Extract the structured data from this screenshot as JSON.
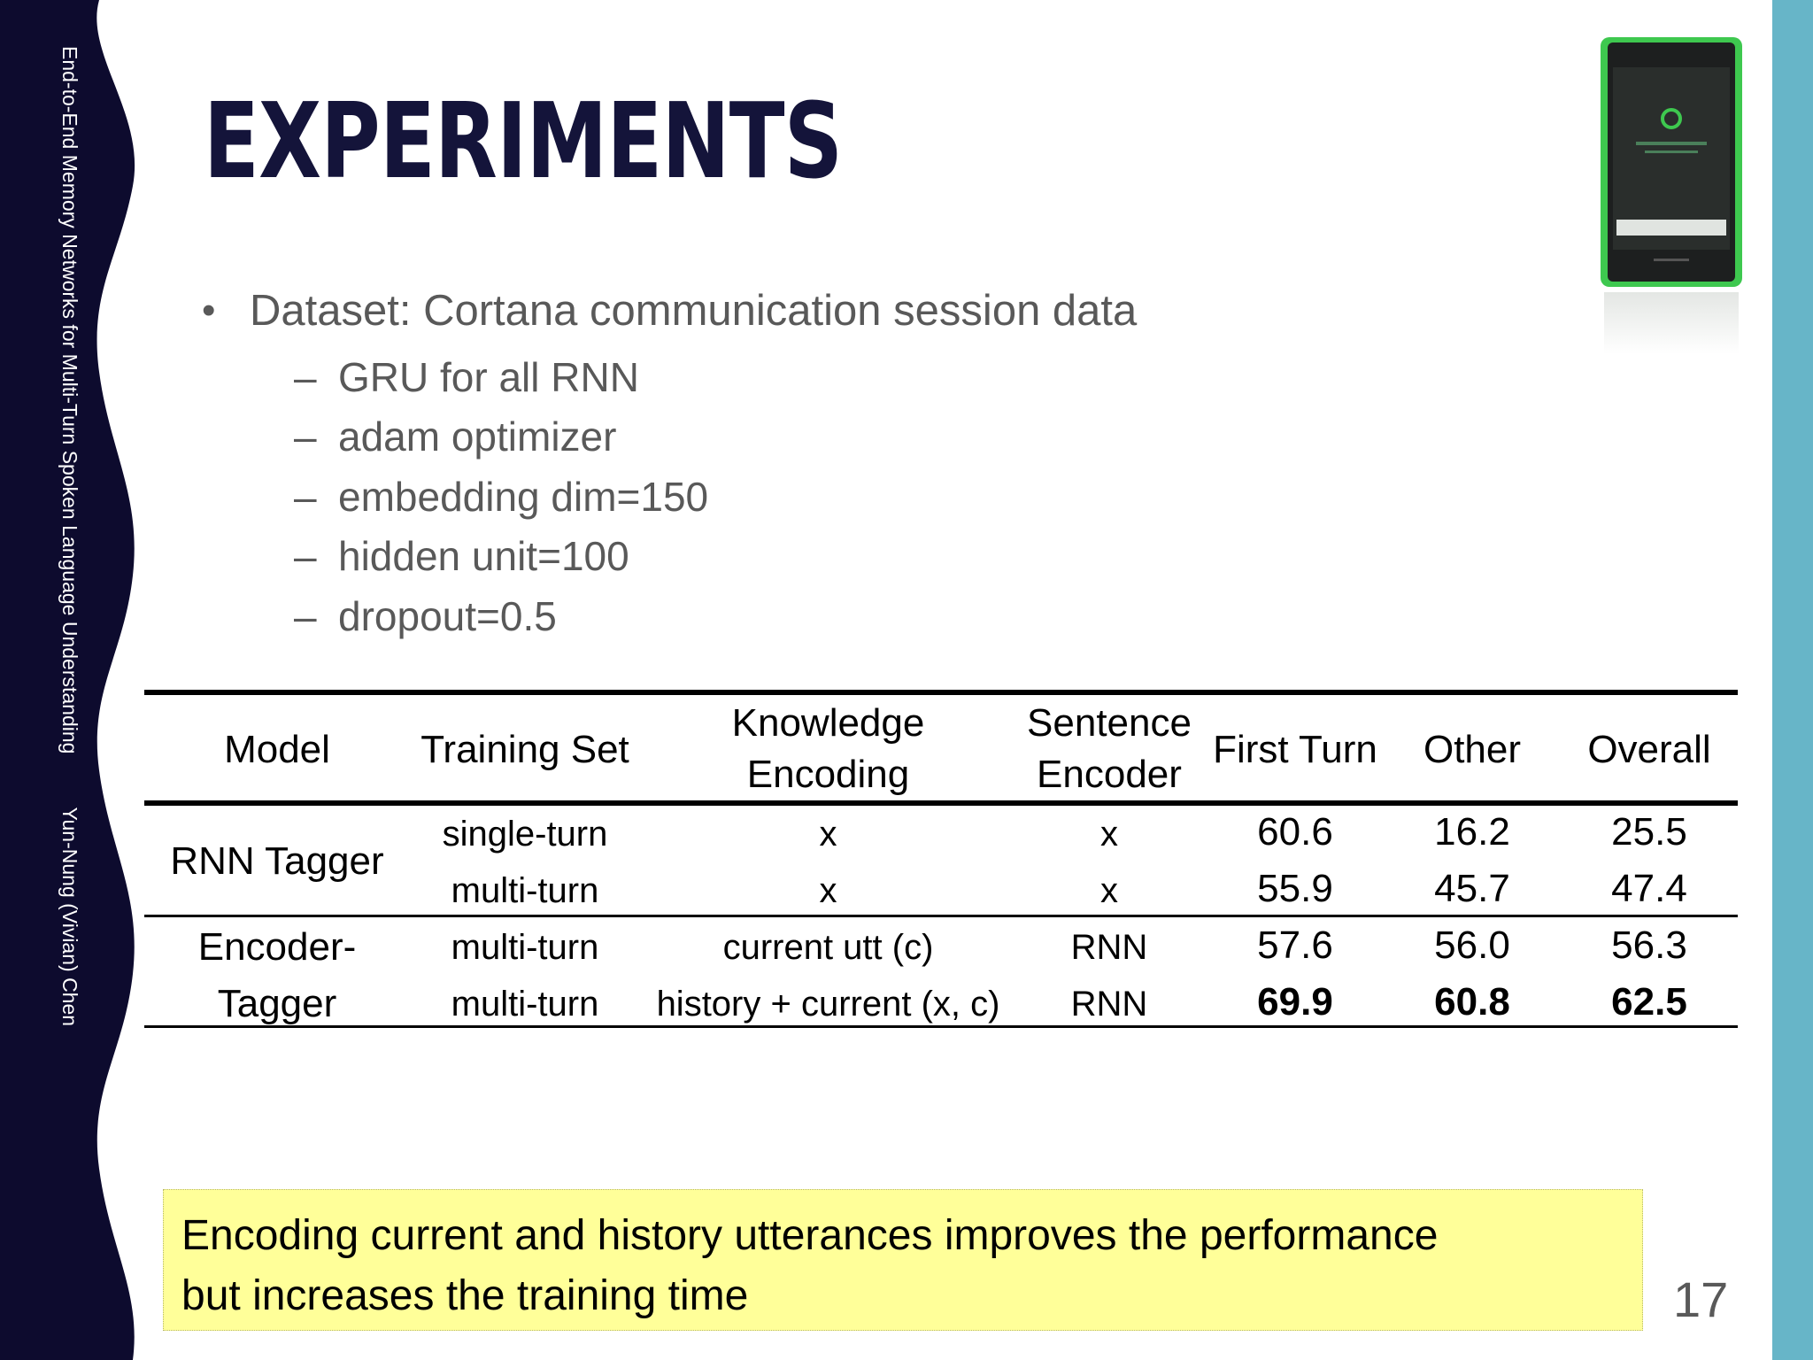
{
  "sidebar": {
    "talk_title": "End-to-End Memory Networks for Multi-Turn Spoken Language Understanding",
    "author": "Yun-Nung (Vivian) Chen"
  },
  "title": "EXPERIMENTS",
  "bullet": {
    "marker": "•",
    "text": "Dataset: Cortana communication session data",
    "sub_marker": "–",
    "subitems": [
      "GRU for all RNN",
      "adam optimizer",
      "embedding dim=150",
      "hidden unit=100",
      "dropout=0.5"
    ]
  },
  "table": {
    "headers": {
      "model": "Model",
      "training_set": "Training Set",
      "knowledge_line1": "Knowledge",
      "knowledge_line2": "Encoding",
      "sentence_line1": "Sentence",
      "sentence_line2": "Encoder",
      "first_turn": "First Turn",
      "other": "Other",
      "overall": "Overall"
    },
    "groups": [
      {
        "model_line1": "RNN Tagger",
        "model_line2": ""
      },
      {
        "model_line1": "Encoder-",
        "model_line2": "Tagger"
      }
    ],
    "rows": [
      {
        "training_set": "single-turn",
        "knowledge": "x",
        "sentence": "x",
        "first_turn": "60.6",
        "other": "16.2",
        "overall": "25.5",
        "bold": false
      },
      {
        "training_set": "multi-turn",
        "knowledge": "x",
        "sentence": "x",
        "first_turn": "55.9",
        "other": "45.7",
        "overall": "47.4",
        "bold": false
      },
      {
        "training_set": "multi-turn",
        "knowledge": "current utt (c)",
        "sentence": "RNN",
        "first_turn": "57.6",
        "other": "56.0",
        "overall": "56.3",
        "bold": false
      },
      {
        "training_set": "multi-turn",
        "knowledge": "history + current (x, c)",
        "sentence": "RNN",
        "first_turn": "69.9",
        "other": "60.8",
        "overall": "62.5",
        "bold": true
      }
    ]
  },
  "callout": {
    "line1": "Encoding current and history utterances improves the performance",
    "line2": "but increases the training time"
  },
  "page_number": "17",
  "colors": {
    "navy": "#0d0b2e",
    "teal_stripe": "#67b5c8",
    "title": "#14143a",
    "body_text": "#595959",
    "callout_bg": "#ffff99",
    "phone_green": "#3ec84f"
  }
}
